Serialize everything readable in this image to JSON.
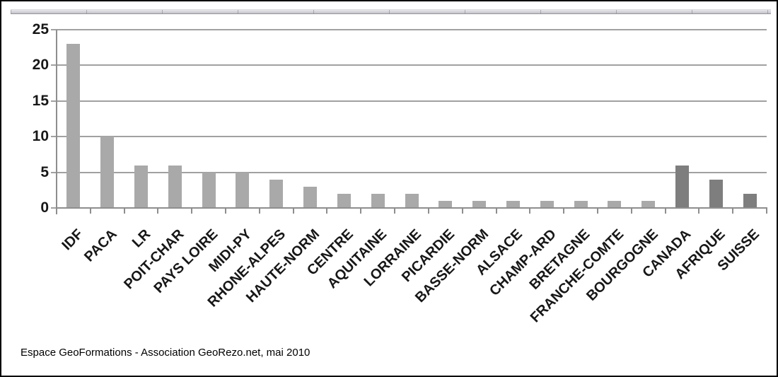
{
  "caption": {
    "text": "Espace GeoFormations - Association GeoRezo.net, mai 2010"
  },
  "chart_data": {
    "type": "bar",
    "title": "",
    "xlabel": "",
    "ylabel": "",
    "categories": [
      "IDF",
      "PACA",
      "LR",
      "POIT-CHAR",
      "PAYS LOIRE",
      "MIDI-PY",
      "RHONE-ALPES",
      "HAUTE-NORM",
      "CENTRE",
      "AQUITAINE",
      "LORRAINE",
      "PICARDIE",
      "BASSE-NORM",
      "ALSACE",
      "CHAMP-ARD",
      "BRETAGNE",
      "FRANCHE-COMTE",
      "BOURGOGNE",
      "CANADA",
      "AFRIQUE",
      "SUISSE"
    ],
    "values": [
      23,
      10,
      6,
      6,
      5,
      5,
      4,
      3,
      2,
      2,
      2,
      1,
      1,
      1,
      1,
      1,
      1,
      1,
      6,
      4,
      2
    ],
    "bar_colors": [
      "#a9a9a9",
      "#a9a9a9",
      "#a9a9a9",
      "#a9a9a9",
      "#a9a9a9",
      "#a9a9a9",
      "#a9a9a9",
      "#a9a9a9",
      "#a9a9a9",
      "#a9a9a9",
      "#a9a9a9",
      "#a9a9a9",
      "#a9a9a9",
      "#a9a9a9",
      "#a9a9a9",
      "#a9a9a9",
      "#a9a9a9",
      "#a9a9a9",
      "#7e7e7e",
      "#7e7e7e",
      "#7e7e7e"
    ],
    "ylim": [
      0,
      25
    ],
    "yticks": [
      0,
      5,
      10,
      15,
      20,
      25
    ],
    "grid": true,
    "legend": null,
    "colors": {
      "gridline": "#a1a1a1",
      "axis": "#8e8e8e",
      "tick_label": "#171717"
    }
  }
}
